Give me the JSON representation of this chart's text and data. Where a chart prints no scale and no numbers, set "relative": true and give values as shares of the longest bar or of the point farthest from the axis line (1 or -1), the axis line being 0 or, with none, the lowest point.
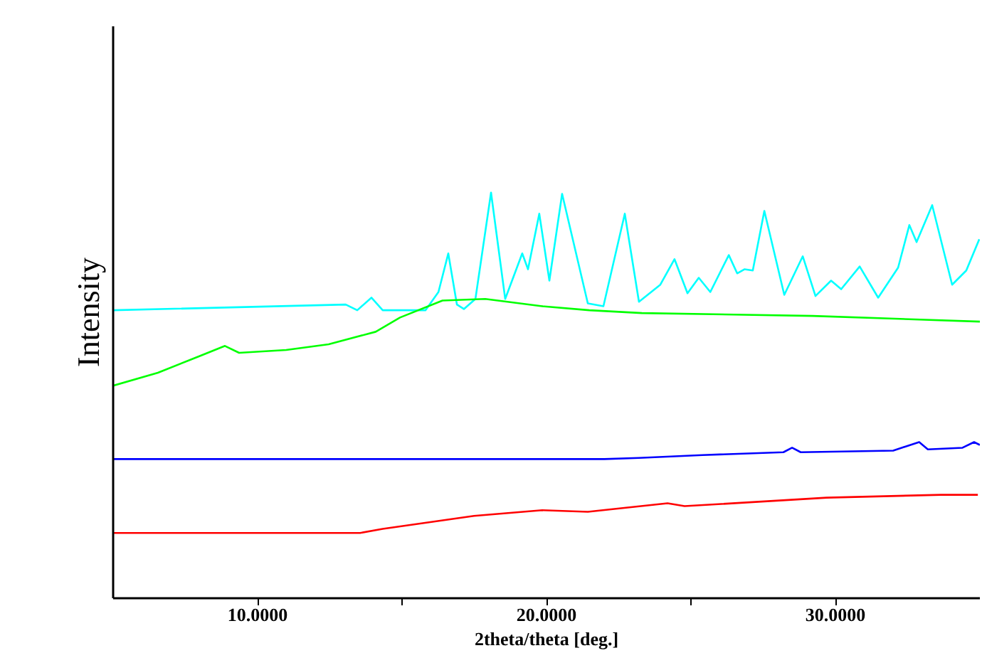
{
  "chart_data": {
    "type": "line",
    "relative": true,
    "xlabel": "2theta/theta [deg.]",
    "ylabel": "Intensity",
    "xlim": [
      5,
      35
    ],
    "xticks": [
      {
        "value": 10,
        "label": "10.0000"
      },
      {
        "value": 15,
        "label": null
      },
      {
        "value": 20,
        "label": "20.0000"
      },
      {
        "value": 25,
        "label": null
      },
      {
        "value": 30,
        "label": "30.0000"
      }
    ],
    "grid": false,
    "marker": "none",
    "line_style": "solid",
    "series": [
      {
        "color": "#00ffff",
        "x": [
          5.0,
          13.05,
          13.45,
          13.94,
          14.33,
          15.81,
          16.26,
          16.6,
          16.9,
          17.14,
          17.54,
          18.08,
          18.57,
          19.16,
          19.36,
          19.75,
          20.1,
          20.54,
          21.43,
          21.97,
          22.71,
          23.2,
          23.94,
          24.43,
          24.88,
          25.27,
          25.67,
          26.31,
          26.6,
          26.85,
          27.14,
          27.54,
          28.23,
          28.87,
          29.31,
          29.85,
          30.2,
          30.84,
          31.48,
          32.17,
          32.56,
          32.81,
          33.35,
          34.04,
          34.53,
          34.98
        ],
        "values": [
          0.71,
          0.724,
          0.71,
          0.741,
          0.71,
          0.71,
          0.755,
          0.85,
          0.724,
          0.713,
          0.738,
          1.0,
          0.738,
          0.85,
          0.811,
          0.948,
          0.783,
          0.997,
          0.727,
          0.72,
          0.948,
          0.731,
          0.773,
          0.836,
          0.752,
          0.79,
          0.755,
          0.846,
          0.801,
          0.811,
          0.808,
          0.955,
          0.748,
          0.843,
          0.745,
          0.783,
          0.762,
          0.818,
          0.741,
          0.815,
          0.92,
          0.878,
          0.969,
          0.773,
          0.808,
          0.885
        ]
      },
      {
        "color": "#00ff00",
        "x": [
          5.0,
          6.55,
          8.03,
          8.87,
          9.36,
          10.99,
          12.46,
          14.09,
          14.93,
          16.4,
          17.88,
          19.85,
          21.48,
          23.3,
          29.21,
          35.0
        ],
        "values": [
          0.524,
          0.556,
          0.598,
          0.622,
          0.605,
          0.612,
          0.626,
          0.657,
          0.692,
          0.734,
          0.738,
          0.72,
          0.71,
          0.703,
          0.696,
          0.682
        ]
      },
      {
        "color": "#0000ff",
        "x": [
          5.0,
          22.0,
          23.2,
          25.4,
          28.2,
          28.5,
          28.8,
          32.0,
          32.9,
          33.2,
          34.4,
          34.8,
          35.0
        ],
        "values": [
          0.343,
          0.343,
          0.346,
          0.353,
          0.36,
          0.371,
          0.36,
          0.364,
          0.385,
          0.367,
          0.371,
          0.385,
          0.378
        ]
      },
      {
        "color": "#ff0000",
        "x": [
          5.0,
          13.55,
          14.33,
          17.49,
          19.85,
          21.43,
          24.19,
          24.78,
          29.7,
          33.65,
          34.93
        ],
        "values": [
          0.161,
          0.161,
          0.171,
          0.203,
          0.217,
          0.213,
          0.234,
          0.227,
          0.248,
          0.255,
          0.255
        ]
      }
    ]
  }
}
